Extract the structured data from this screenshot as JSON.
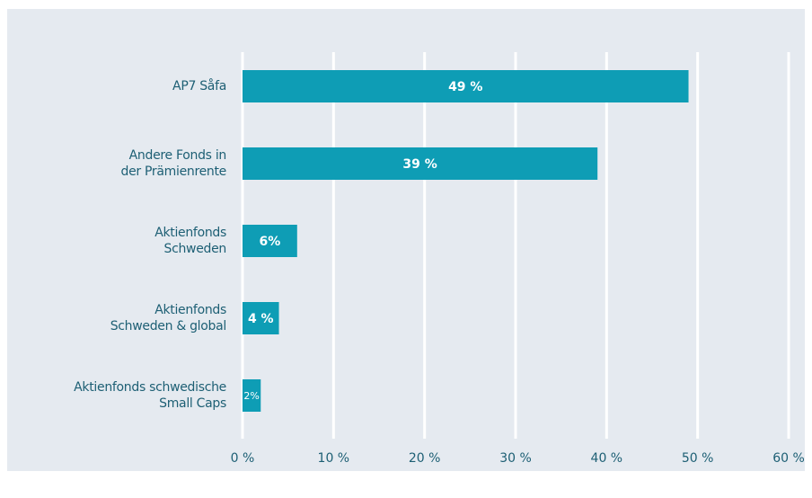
{
  "chart_data": {
    "type": "bar",
    "orientation": "horizontal",
    "categories": [
      "AP7 Såfa",
      "Andere Fonds in\nder Prämienrente",
      "Aktienfonds\nSchweden",
      "Aktienfonds\nSchweden & global",
      "Aktienfonds schwedische\nSmall Caps"
    ],
    "values": [
      49,
      39,
      6,
      4,
      2
    ],
    "value_labels": [
      "49 %",
      "39 %",
      "6%",
      "4 %",
      "2%"
    ],
    "color": "#0e9db5",
    "xlim": [
      0,
      60
    ],
    "xticks": [
      {
        "value": 0,
        "label": "0 %"
      },
      {
        "value": 10,
        "label": "10 %"
      },
      {
        "value": 20,
        "label": "20 %"
      },
      {
        "value": 30,
        "label": "30 %"
      },
      {
        "value": 40,
        "label": "40 %"
      },
      {
        "value": 50,
        "label": "50 %"
      },
      {
        "value": 60,
        "label": "60 %"
      }
    ],
    "grid": true
  }
}
